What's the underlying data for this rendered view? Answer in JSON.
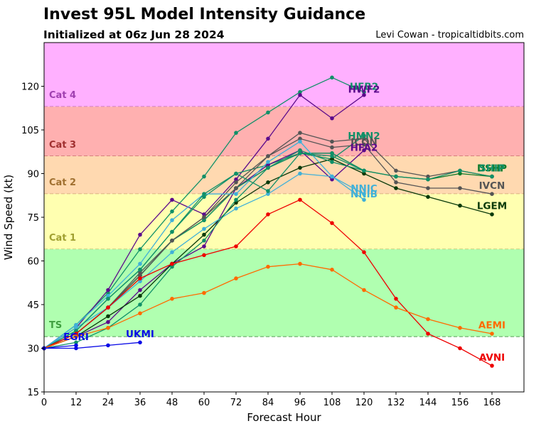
{
  "header": {
    "title": "Invest 95L Model Intensity Guidance",
    "subtitle": "Initialized at 06z Jun 28 2024",
    "credit": "Levi Cowan - tropicaltidbits.com"
  },
  "chart_data": {
    "type": "line",
    "title": "Invest 95L Model Intensity Guidance",
    "subtitle": "Initialized at 06z Jun 28 2024",
    "xlabel": "Forecast Hour",
    "ylabel": "Wind Speed (kt)",
    "xlim": [
      0,
      180
    ],
    "ylim": [
      15,
      135
    ],
    "xticks": [
      0,
      12,
      24,
      36,
      48,
      60,
      72,
      84,
      96,
      108,
      120,
      132,
      144,
      156,
      168
    ],
    "yticks": [
      15,
      30,
      45,
      60,
      75,
      90,
      105,
      120
    ],
    "grid": false,
    "legend": "none (inline labels at series ends)",
    "bands": [
      {
        "name": "Cat 4",
        "from": 113,
        "to": 135,
        "color": "#ffb0ff",
        "line_color": "#b060b0",
        "label_color": "#a040b0"
      },
      {
        "name": "Cat 3",
        "from": 96,
        "to": 113,
        "color": "#ffb0b0",
        "line_color": "#c06060",
        "label_color": "#a03030"
      },
      {
        "name": "Cat 2",
        "from": 83,
        "to": 96,
        "color": "#ffd9b0",
        "line_color": "#c09060",
        "label_color": "#a07030"
      },
      {
        "name": "Cat 1",
        "from": 64,
        "to": 83,
        "color": "#ffffb0",
        "line_color": "#b0b060",
        "label_color": "#a0a030"
      },
      {
        "name": "TS",
        "from": 34,
        "to": 64,
        "color": "#b0ffb0",
        "line_color": "#70b070",
        "label_color": "#40a040"
      }
    ],
    "series": [
      {
        "name": "HFB2",
        "color": "#109068",
        "x": [
          0,
          12,
          24,
          36,
          48,
          60,
          72,
          84,
          96,
          108,
          120
        ],
        "y": [
          30,
          38,
          49,
          64,
          77,
          89,
          104,
          111,
          118,
          123,
          118
        ],
        "label_at": [
          120,
          120
        ]
      },
      {
        "name": "HWF2",
        "color": "#5c0a8c",
        "x": [
          0,
          12,
          24,
          36,
          48,
          60,
          72,
          84,
          96,
          108,
          120
        ],
        "y": [
          30,
          37,
          50,
          69,
          81,
          76,
          88,
          102,
          117,
          109,
          117
        ],
        "label_at": [
          120,
          119
        ]
      },
      {
        "name": "HMN2",
        "color": "#109068",
        "x": [
          0,
          12,
          24,
          36,
          48,
          60,
          72,
          84,
          96,
          108,
          120
        ],
        "y": [
          30,
          36,
          47,
          57,
          70,
          82,
          90,
          93,
          97,
          95,
          103
        ],
        "label_at": [
          120,
          103
        ]
      },
      {
        "name": "ICON",
        "color": "#555555",
        "x": [
          0,
          12,
          24,
          36,
          48,
          60,
          72,
          84,
          96,
          108,
          120,
          132,
          144,
          156,
          168
        ],
        "y": [
          30,
          35,
          44,
          56,
          67,
          75,
          87,
          96,
          104,
          101,
          102,
          91,
          89,
          91,
          89
        ],
        "label_at": [
          120,
          101
        ]
      },
      {
        "name": "HFA2",
        "color": "#5c0a8c",
        "x": [
          0,
          12,
          24,
          36,
          48,
          60,
          72,
          84,
          96,
          108,
          120
        ],
        "y": [
          30,
          34,
          39,
          50,
          59,
          65,
          85,
          93,
          98,
          88,
          98
        ],
        "label_at": [
          120,
          99
        ]
      },
      {
        "name": "DSHP",
        "color": "#0a7a2a",
        "x": [
          0,
          12,
          24,
          36,
          48,
          60,
          72,
          84,
          96,
          108,
          120,
          132,
          144,
          156,
          168
        ],
        "y": [
          30,
          35,
          44,
          55,
          67,
          74,
          85,
          92,
          97,
          97,
          91,
          89,
          88,
          90,
          89
        ],
        "label_at": [
          168,
          92
        ]
      },
      {
        "name": "SHIP",
        "color": "#109068",
        "x": [
          0,
          12,
          24,
          36,
          48,
          60,
          72,
          84,
          96,
          108,
          120,
          132,
          144,
          156,
          168
        ],
        "y": [
          30,
          35,
          44,
          55,
          67,
          74,
          85,
          92,
          97,
          97,
          91,
          89,
          88,
          91,
          89
        ],
        "label_at": [
          168,
          92
        ]
      },
      {
        "name": "IVCN",
        "color": "#555555",
        "x": [
          0,
          12,
          24,
          36,
          48,
          60,
          72,
          84,
          96,
          108,
          120,
          132,
          144,
          156,
          168
        ],
        "y": [
          30,
          35,
          44,
          55,
          67,
          75,
          85,
          96,
          102,
          99,
          100,
          87,
          85,
          85,
          83
        ],
        "label_at": [
          168,
          86
        ]
      },
      {
        "name": "LGEM",
        "color": "#0a3a0a",
        "x": [
          0,
          12,
          24,
          36,
          48,
          60,
          72,
          84,
          96,
          108,
          120,
          132,
          144,
          156,
          168
        ],
        "y": [
          30,
          34,
          41,
          48,
          59,
          69,
          80,
          87,
          92,
          95,
          90,
          85,
          82,
          79,
          76
        ],
        "label_at": [
          168,
          79
        ]
      },
      {
        "name": "NNIC",
        "color": "#40b0d8",
        "x": [
          0,
          12,
          24,
          36,
          48,
          60,
          72,
          84,
          96,
          108,
          120
        ],
        "y": [
          30,
          38,
          48,
          59,
          74,
          83,
          83,
          94,
          101,
          89,
          83
        ],
        "label_at": [
          120,
          85
        ]
      },
      {
        "name": "NNIB",
        "color": "#40b0d8",
        "x": [
          0,
          12,
          24,
          36,
          48,
          60,
          72,
          84,
          96,
          108,
          120
        ],
        "y": [
          30,
          37,
          44,
          53,
          63,
          71,
          78,
          83,
          90,
          89,
          81
        ],
        "label_at": [
          120,
          83
        ]
      },
      {
        "name": "CTCI",
        "color": "#109068",
        "x": [
          0,
          12,
          24,
          36,
          48,
          60,
          72,
          84,
          96,
          108,
          120
        ],
        "y": [
          30,
          36,
          47,
          57,
          70,
          83,
          90,
          84,
          97,
          96,
          91
        ],
        "label_at": null
      },
      {
        "name": "GFSO",
        "color": "#109068",
        "x": [
          0,
          12,
          24,
          36,
          48,
          60,
          72,
          84,
          96,
          108,
          120
        ],
        "y": [
          30,
          32,
          37,
          45,
          58,
          67,
          81,
          92,
          98,
          94,
          91
        ],
        "label_at": null
      },
      {
        "name": "AVNI",
        "color": "#ee0000",
        "x": [
          0,
          12,
          24,
          36,
          48,
          60,
          72,
          84,
          96,
          108,
          120,
          132,
          144,
          156,
          168
        ],
        "y": [
          30,
          35,
          44,
          54,
          59,
          62,
          65,
          76,
          81,
          73,
          63,
          47,
          35,
          30,
          24
        ],
        "label_at": [
          168,
          27
        ]
      },
      {
        "name": "AEMI",
        "color": "#ff6a00",
        "x": [
          0,
          12,
          24,
          36,
          48,
          60,
          72,
          84,
          96,
          108,
          120,
          132,
          144,
          156,
          168
        ],
        "y": [
          30,
          34,
          37,
          42,
          47,
          49,
          54,
          58,
          59,
          57,
          50,
          44,
          40,
          37,
          35
        ],
        "label_at": [
          168,
          38
        ]
      },
      {
        "name": "EGRI",
        "color": "#0a0ae6",
        "x": [
          0,
          12
        ],
        "y": [
          30,
          31
        ],
        "label_at": [
          12,
          34
        ]
      },
      {
        "name": "UKMI",
        "color": "#0a0ae6",
        "x": [
          0,
          12,
          24,
          36
        ],
        "y": [
          30,
          30,
          31,
          32
        ],
        "label_at": [
          36,
          35
        ]
      }
    ]
  }
}
